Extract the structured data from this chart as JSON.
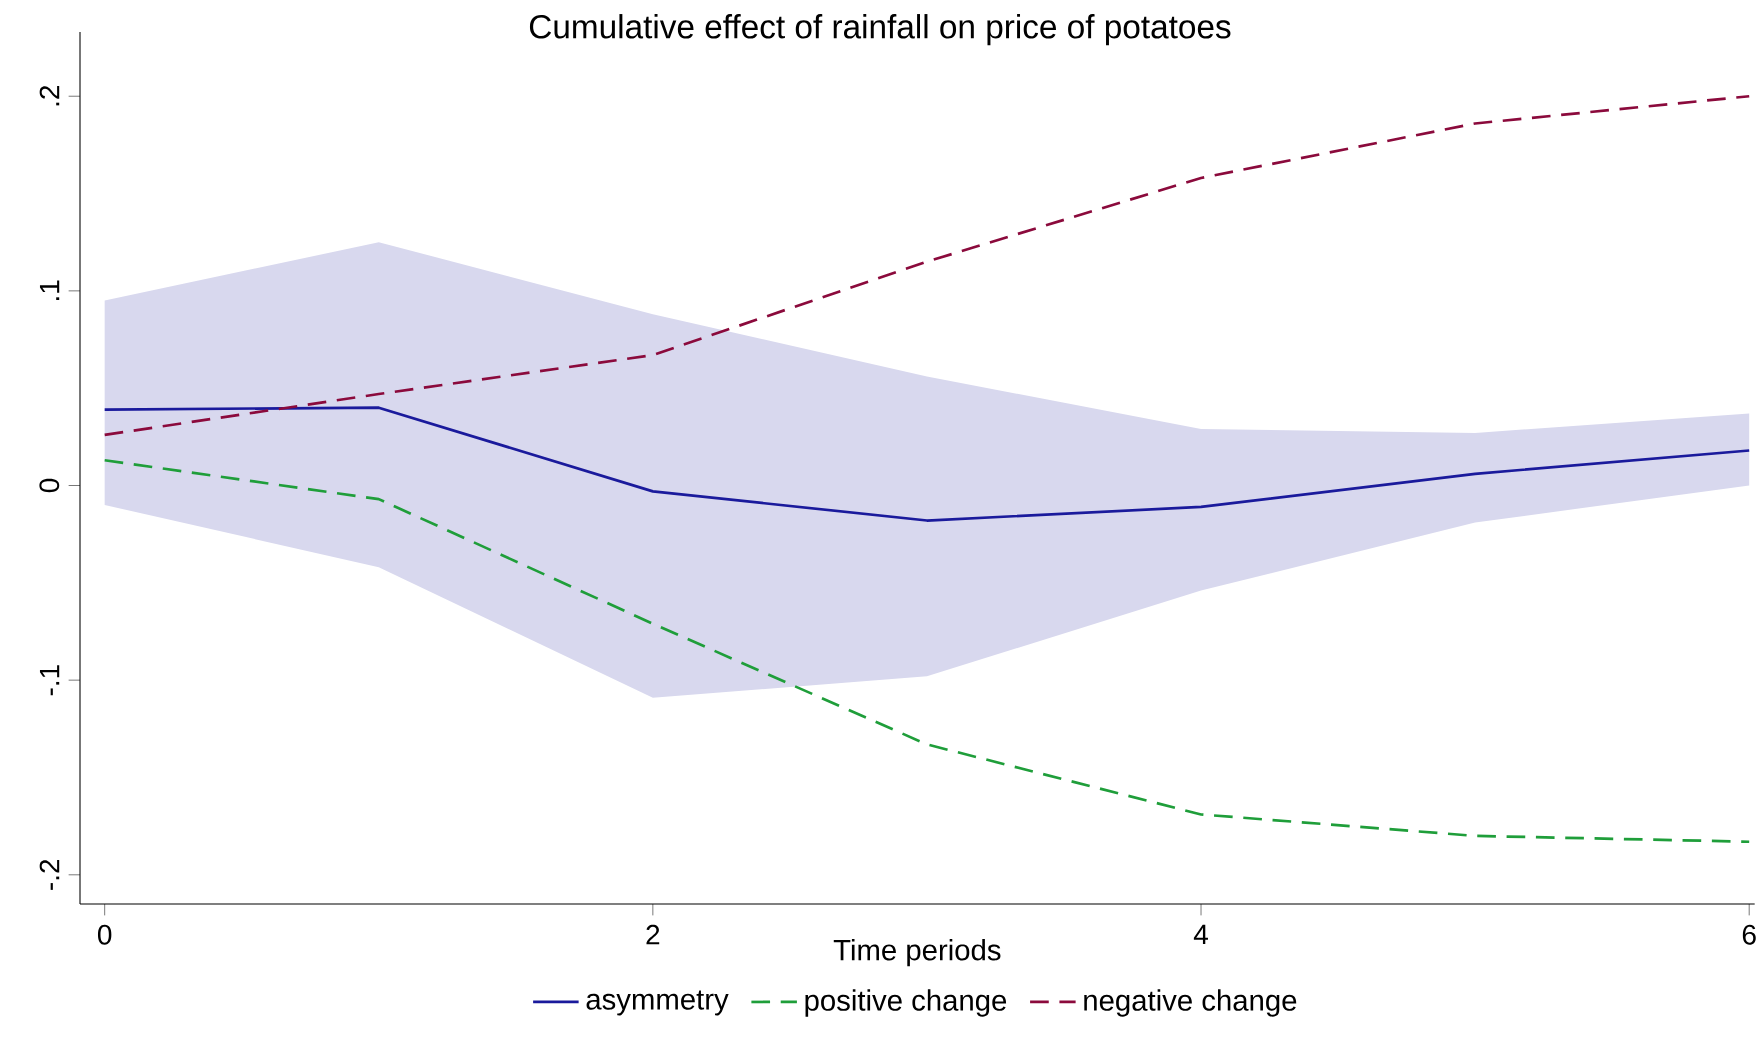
{
  "chart_data": {
    "type": "line",
    "title": "Cumulative effect of rainfall on price of potatoes",
    "xlabel": "Time periods",
    "x": [
      0,
      1,
      2,
      3,
      4,
      5,
      6
    ],
    "series": [
      {
        "name": "asymmetry",
        "color": "#1a1a9c",
        "line_style": "solid",
        "values": [
          0.039,
          0.04,
          -0.003,
          -0.018,
          -0.011,
          0.006,
          0.018
        ],
        "lower": [
          -0.01,
          -0.042,
          -0.109,
          -0.098,
          -0.054,
          -0.019,
          0.0
        ],
        "upper": [
          0.095,
          0.125,
          0.088,
          0.056,
          0.029,
          0.027,
          0.037
        ]
      },
      {
        "name": "positive change",
        "color": "#1f9e3a",
        "line_style": "dashed",
        "values": [
          0.013,
          -0.007,
          -0.071,
          -0.133,
          -0.169,
          -0.18,
          -0.183
        ]
      },
      {
        "name": "negative change",
        "color": "#8b0a3c",
        "line_style": "dashed",
        "values": [
          0.026,
          0.047,
          0.067,
          0.115,
          0.158,
          0.186,
          0.2
        ]
      }
    ],
    "xlim": [
      -0.09,
      6.02
    ],
    "ylim": [
      -0.215,
      0.233
    ],
    "xticks": [
      0,
      2,
      4,
      6
    ],
    "yticks": [
      {
        "value": -0.2,
        "label": "-.2"
      },
      {
        "value": -0.1,
        "label": "-.1"
      },
      0,
      {
        "value": 0.1,
        "label": ".1"
      },
      {
        "value": 0.2,
        "label": ".2"
      }
    ],
    "grid": false,
    "legend": "bottom",
    "marker": "none"
  }
}
